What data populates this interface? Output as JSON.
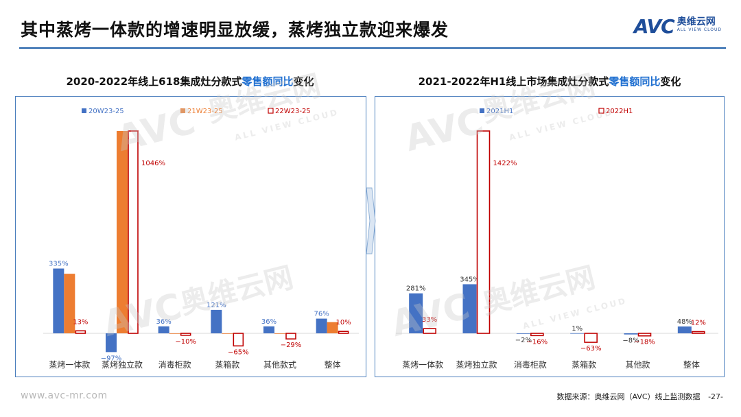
{
  "header": {
    "title": "其中蒸烤一体款的增速明显放缓，蒸烤独立款迎来爆发"
  },
  "logo": {
    "mark": "AVC",
    "cn": "奥维云网",
    "en": "ALL VIEW CLOUD"
  },
  "colors": {
    "blue": "#4472c4",
    "orange": "#ed7d31",
    "red": "#c00000",
    "rule": "#1f5fa8"
  },
  "watermark": {
    "mark": "AVC",
    "cn": "奥维云网",
    "en": "ALL VIEW CLOUD"
  },
  "footer": {
    "site": "www.avc-mr.com",
    "source": "数据来源：奥维云网（AVC）线上监测数据",
    "page": "-27-"
  },
  "chart_data": [
    {
      "type": "bar",
      "title_pre": "2020-2022年线上618集成灶分款式",
      "title_hl": "零售额同比",
      "title_post": "变化",
      "categories": [
        "蒸烤一体款",
        "蒸烤独立款",
        "消毒柜款",
        "蒸箱款",
        "其他款式",
        "整体"
      ],
      "series": [
        {
          "name": "20W23-25",
          "style": "solid-blue",
          "values": [
            335,
            -97,
            36,
            121,
            36,
            76
          ],
          "labels": [
            "335%",
            "-97%",
            "36%",
            "121%",
            "36%",
            "76%"
          ]
        },
        {
          "name": "21W23-25",
          "style": "solid-orange",
          "values": [
            308,
            1046,
            0,
            -2,
            -2,
            58
          ],
          "labels": [
            "",
            "",
            "",
            "",
            "",
            ""
          ]
        },
        {
          "name": "22W23-25",
          "style": "outline-red",
          "values": [
            13,
            1046,
            -10,
            -65,
            -29,
            10
          ],
          "labels": [
            "13%",
            "1046%",
            "-10%",
            "-65%",
            "-29%",
            "10%"
          ]
        }
      ],
      "ylim": [
        -130,
        1046
      ]
    },
    {
      "type": "bar",
      "title_pre": "2021-2022年H1线上市场集成灶分款式",
      "title_hl": "零售额同比",
      "title_post": "变化",
      "categories": [
        "蒸烤一体款",
        "蒸烤独立款",
        "消毒柜款",
        "蒸箱款",
        "其他款",
        "整体"
      ],
      "series": [
        {
          "name": "2021H1",
          "style": "solid-blue",
          "values": [
            281,
            345,
            -2,
            1,
            -8,
            48
          ],
          "labels": [
            "281%",
            "345%",
            "-2%",
            "1%",
            "-8%",
            "48%"
          ]
        },
        {
          "name": "2022H1",
          "style": "outline-red",
          "values": [
            33,
            1422,
            -16,
            -63,
            -18,
            12
          ],
          "labels": [
            "33%",
            "1422%",
            "-16%",
            "-63%",
            "-18%",
            "12%"
          ]
        }
      ],
      "ylim": [
        -110,
        1422
      ]
    }
  ]
}
